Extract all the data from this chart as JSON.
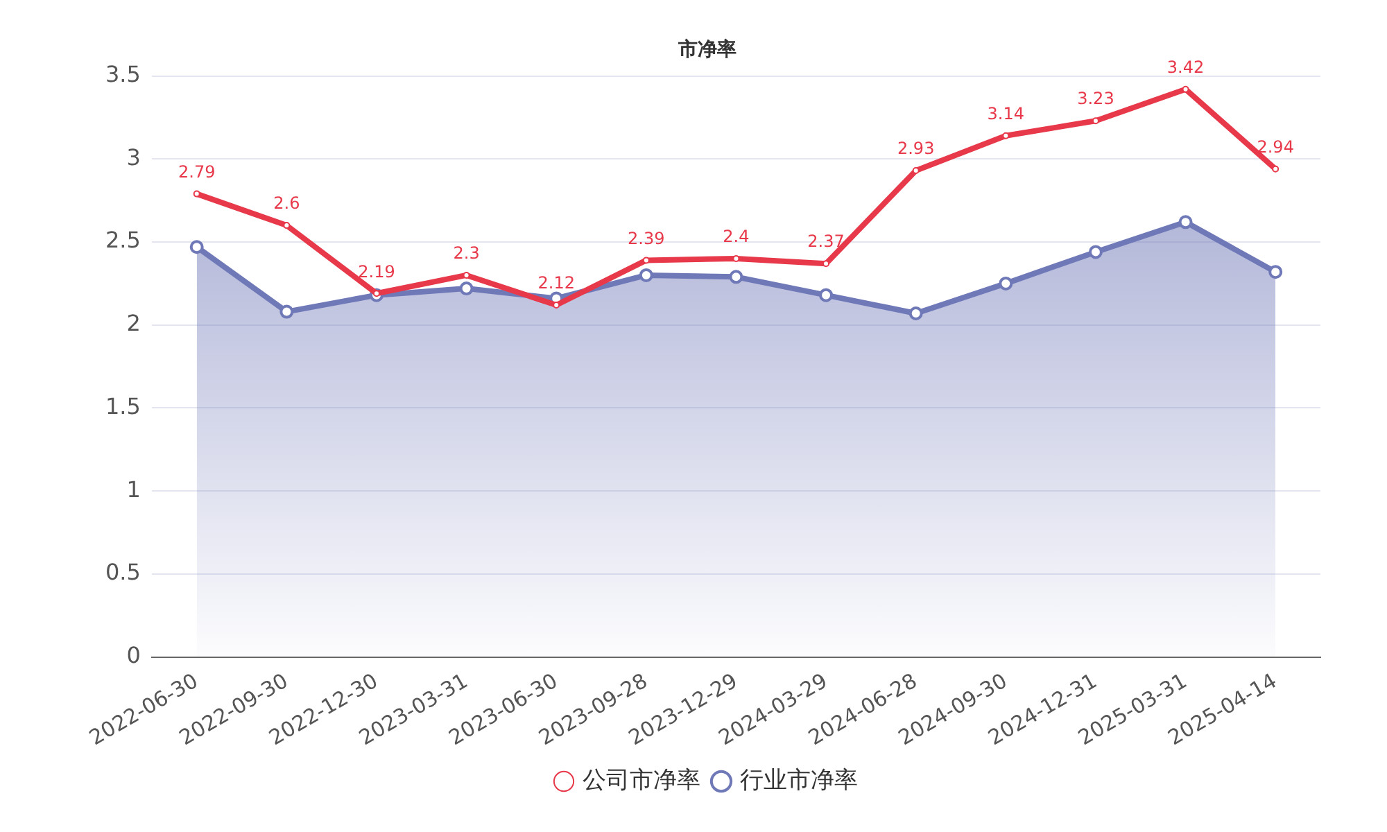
{
  "chart_data": {
    "type": "line",
    "title": "市净率",
    "categories": [
      "2022-06-30",
      "2022-09-30",
      "2022-12-30",
      "2023-03-31",
      "2023-06-30",
      "2023-09-28",
      "2023-12-29",
      "2024-03-29",
      "2024-06-28",
      "2024-09-30",
      "2024-12-31",
      "2025-03-31",
      "2025-04-14"
    ],
    "series": [
      {
        "name": "公司市净率",
        "type": "line",
        "color": "#e8394a",
        "values": [
          2.79,
          2.6,
          2.19,
          2.3,
          2.12,
          2.39,
          2.4,
          2.37,
          2.93,
          3.14,
          3.23,
          3.42,
          2.94
        ],
        "value_labels": [
          "2.79",
          "2.6",
          "2.19",
          "2.3",
          "2.12",
          "2.39",
          "2.4",
          "2.37",
          "2.93",
          "3.14",
          "3.23",
          "3.42",
          "2.94"
        ]
      },
      {
        "name": "行业市净率",
        "type": "area",
        "color": "#7079b8",
        "values": [
          2.47,
          2.08,
          2.18,
          2.22,
          2.16,
          2.3,
          2.29,
          2.18,
          2.07,
          2.25,
          2.44,
          2.62,
          2.32
        ]
      }
    ],
    "ylim": [
      0,
      3.5
    ],
    "yticks": [
      0,
      0.5,
      1,
      1.5,
      2,
      2.5,
      3,
      3.5
    ],
    "grid": "y",
    "legend": "bottom",
    "marker": "circle"
  }
}
